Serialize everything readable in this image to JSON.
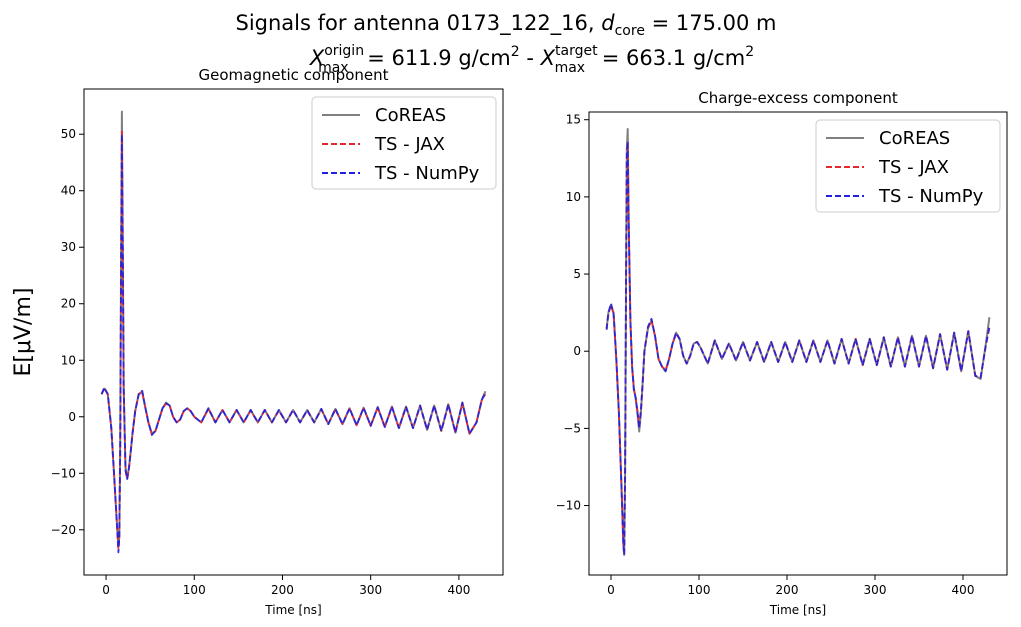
{
  "figure": {
    "title_line1": {
      "prefix": "Signals for antenna 0173_122_16, ",
      "d": "d",
      "d_sub": "core",
      "suffix": " = 175.00 m"
    },
    "title_line2": {
      "x1": "X",
      "x1_sup": "origin",
      "x1_sub": "max",
      "v1": " =  611.9 g/cm",
      "v1_sup": "2",
      "sep": " -  ",
      "x2": "X",
      "x2_sup": "target",
      "x2_sub": "max",
      "v2": " =  663.1 g/cm",
      "v2_sup": "2"
    }
  },
  "chart_data": [
    {
      "type": "line",
      "title": "Geomagnetic component",
      "xlabel": "Time [ns]",
      "ylabel": "E[μV/m]",
      "xlim": [
        -25,
        450
      ],
      "ylim": [
        -28,
        58
      ],
      "xticks": [
        0,
        100,
        200,
        300,
        400
      ],
      "yticks": [
        -20,
        -10,
        0,
        10,
        20,
        30,
        40,
        50
      ],
      "legend_position": "top-right",
      "legend": [
        "CoREAS",
        "TS - JAX",
        "TS - NumPy"
      ],
      "series": [
        {
          "name": "CoREAS",
          "color": "#808080",
          "style": "solid",
          "x": [
            -5,
            -2,
            2,
            6,
            9,
            12,
            14,
            15,
            16,
            17,
            18,
            19,
            20,
            22,
            24,
            26,
            28,
            30,
            33,
            37,
            41,
            44,
            48,
            52,
            56,
            60,
            64,
            68,
            72,
            76,
            80,
            84,
            88,
            92,
            96,
            100,
            108,
            116,
            124,
            132,
            140,
            148,
            156,
            164,
            172,
            180,
            188,
            196,
            204,
            212,
            220,
            228,
            236,
            244,
            252,
            260,
            268,
            276,
            284,
            292,
            300,
            308,
            316,
            324,
            332,
            340,
            348,
            356,
            364,
            372,
            380,
            388,
            396,
            404,
            412,
            420,
            426,
            430
          ],
          "y": [
            4,
            5,
            4,
            -2,
            -10,
            -18,
            -23,
            -21,
            -5,
            25,
            54,
            30,
            5,
            -9,
            -11,
            -9,
            -6,
            -3,
            1,
            4,
            4.5,
            2,
            -1,
            -3,
            -2.5,
            -0.5,
            1.5,
            2.5,
            2,
            0,
            -1,
            -0.5,
            1,
            1.5,
            1,
            0,
            -1,
            1.5,
            -1,
            1.2,
            -1,
            1.2,
            -1,
            1.2,
            -1,
            1.2,
            -1,
            1.2,
            -1,
            1.2,
            -1,
            1.2,
            -1,
            1.4,
            -1.3,
            1.4,
            -1.3,
            1.5,
            -1.5,
            1.6,
            -1.6,
            1.7,
            -1.8,
            1.8,
            -2,
            1.8,
            -2,
            2,
            -2.3,
            2,
            -2.5,
            2.2,
            -2.8,
            2.5,
            -3,
            -1,
            3,
            4.5
          ]
        },
        {
          "name": "TS - JAX",
          "color": "#e8242c",
          "style": "dashed",
          "x": [
            -5,
            -2,
            2,
            6,
            9,
            12,
            14,
            15,
            16,
            17,
            18,
            19,
            20,
            22,
            24,
            26,
            28,
            30,
            33,
            37,
            41,
            44,
            48,
            52,
            56,
            60,
            64,
            68,
            72,
            76,
            80,
            84,
            88,
            92,
            96,
            100,
            108,
            116,
            124,
            132,
            140,
            148,
            156,
            164,
            172,
            180,
            188,
            196,
            204,
            212,
            220,
            228,
            236,
            244,
            252,
            260,
            268,
            276,
            284,
            292,
            300,
            308,
            316,
            324,
            332,
            340,
            348,
            356,
            364,
            372,
            380,
            388,
            396,
            404,
            412,
            420,
            426,
            430
          ],
          "y": [
            4,
            5,
            4,
            -2,
            -10,
            -18,
            -23.5,
            -21.5,
            -6,
            24,
            50.5,
            29,
            5,
            -9.5,
            -11,
            -9,
            -6,
            -3,
            1,
            4,
            4.3,
            2,
            -1,
            -3.2,
            -2.5,
            -0.5,
            1.5,
            2.3,
            2,
            0,
            -1,
            -0.5,
            1,
            1.5,
            1,
            0,
            -1,
            1.4,
            -1,
            1.2,
            -1,
            1.2,
            -1,
            1.1,
            -1,
            1.2,
            -1,
            1.1,
            -1,
            1.2,
            -1,
            1.1,
            -1,
            1.3,
            -1.3,
            1.3,
            -1.3,
            1.4,
            -1.5,
            1.5,
            -1.6,
            1.6,
            -1.8,
            1.7,
            -2,
            1.7,
            -2,
            1.9,
            -2.3,
            1.9,
            -2.5,
            2.1,
            -2.8,
            2.4,
            -3,
            -1,
            3,
            4
          ]
        },
        {
          "name": "TS - NumPy",
          "color": "#2020e0",
          "style": "dashed",
          "x": [
            -5,
            -2,
            2,
            6,
            9,
            12,
            14,
            15,
            16,
            17,
            18,
            19,
            20,
            22,
            24,
            26,
            28,
            30,
            33,
            37,
            41,
            44,
            48,
            52,
            56,
            60,
            64,
            68,
            72,
            76,
            80,
            84,
            88,
            92,
            96,
            100,
            108,
            116,
            124,
            132,
            140,
            148,
            156,
            164,
            172,
            180,
            188,
            196,
            204,
            212,
            220,
            228,
            236,
            244,
            252,
            260,
            268,
            276,
            284,
            292,
            300,
            308,
            316,
            324,
            332,
            340,
            348,
            356,
            364,
            372,
            380,
            388,
            396,
            404,
            412,
            420,
            426,
            430
          ],
          "y": [
            4,
            5.2,
            4,
            -2,
            -10,
            -18,
            -24,
            -21.5,
            -6,
            24,
            50,
            29,
            5,
            -9.5,
            -11,
            -9,
            -6,
            -3,
            1,
            4,
            4.6,
            2,
            -1,
            -3.2,
            -2.5,
            -0.5,
            1.5,
            2.4,
            2,
            0,
            -1,
            -0.5,
            1,
            1.5,
            1,
            0,
            -1,
            1.5,
            -1,
            1.2,
            -1,
            1.2,
            -1,
            1.2,
            -1,
            1.2,
            -1,
            1.2,
            -1,
            1.2,
            -1,
            1.2,
            -1,
            1.4,
            -1.3,
            1.4,
            -1.3,
            1.5,
            -1.5,
            1.6,
            -1.6,
            1.7,
            -1.8,
            1.8,
            -2,
            1.8,
            -2,
            2,
            -2.3,
            2,
            -2.5,
            2.2,
            -2.8,
            2.5,
            -3,
            -1,
            3,
            4.2
          ]
        }
      ]
    },
    {
      "type": "line",
      "title": "Charge-excess component",
      "xlabel": "Time [ns]",
      "ylabel": "",
      "xlim": [
        -25,
        450
      ],
      "ylim": [
        -14.5,
        15.5
      ],
      "xticks": [
        0,
        100,
        200,
        300,
        400
      ],
      "yticks": [
        -10,
        -5,
        0,
        5,
        10,
        15
      ],
      "legend_position": "top-right",
      "legend": [
        "CoREAS",
        "TS - JAX",
        "TS - NumPy"
      ],
      "series": [
        {
          "name": "CoREAS",
          "color": "#808080",
          "style": "solid",
          "x": [
            -5,
            -3,
            0,
            3,
            6,
            9,
            12,
            14,
            15,
            16,
            17,
            18,
            19,
            20,
            22,
            24,
            26,
            28,
            30,
            32,
            34,
            36,
            38,
            42,
            46,
            50,
            54,
            58,
            62,
            66,
            70,
            74,
            78,
            82,
            86,
            90,
            94,
            98,
            102,
            110,
            118,
            126,
            134,
            142,
            150,
            158,
            166,
            174,
            182,
            190,
            198,
            206,
            214,
            222,
            230,
            238,
            246,
            254,
            262,
            270,
            278,
            286,
            294,
            302,
            310,
            318,
            326,
            334,
            342,
            350,
            358,
            366,
            374,
            382,
            390,
            398,
            406,
            414,
            420,
            426,
            430
          ],
          "y": [
            1.5,
            2.5,
            3,
            2.5,
            -0.5,
            -4,
            -9,
            -12.5,
            -13.2,
            -8,
            4,
            13,
            14.4,
            9,
            2,
            -1,
            -2.5,
            -3,
            -4,
            -5.2,
            -4,
            -2,
            0,
            1.5,
            2,
            1,
            -0.5,
            -1,
            -1.3,
            -0.5,
            0.5,
            1.2,
            0.8,
            -0.3,
            -0.8,
            -0.3,
            0.5,
            0.6,
            0.2,
            -0.8,
            0.7,
            -0.5,
            0.5,
            -0.6,
            0.6,
            -0.6,
            0.6,
            -0.7,
            0.6,
            -0.7,
            0.6,
            -0.7,
            0.7,
            -0.7,
            0.7,
            -0.7,
            0.7,
            -0.8,
            0.8,
            -0.8,
            0.8,
            -0.9,
            0.8,
            -0.9,
            0.9,
            -1,
            0.9,
            -1,
            1,
            -1,
            1,
            -1.1,
            1.1,
            -1.2,
            1.2,
            -1.3,
            1.3,
            -1.6,
            -1.8,
            0.5,
            2.2
          ]
        },
        {
          "name": "TS - JAX",
          "color": "#e8242c",
          "style": "dashed",
          "x": [
            -5,
            -3,
            0,
            3,
            6,
            9,
            12,
            14,
            15,
            16,
            17,
            18,
            19,
            20,
            22,
            24,
            26,
            28,
            30,
            32,
            34,
            36,
            38,
            42,
            46,
            50,
            54,
            58,
            62,
            66,
            70,
            74,
            78,
            82,
            86,
            90,
            94,
            98,
            102,
            110,
            118,
            126,
            134,
            142,
            150,
            158,
            166,
            174,
            182,
            190,
            198,
            206,
            214,
            222,
            230,
            238,
            246,
            254,
            262,
            270,
            278,
            286,
            294,
            302,
            310,
            318,
            326,
            334,
            342,
            350,
            358,
            366,
            374,
            382,
            390,
            398,
            406,
            414,
            420,
            426,
            430
          ],
          "y": [
            1.4,
            2.4,
            3,
            2.4,
            -0.5,
            -4,
            -9,
            -12.3,
            -13,
            -8,
            3.8,
            12.6,
            13.5,
            8.5,
            2,
            -1,
            -2.4,
            -3,
            -3.8,
            -4.8,
            -3.8,
            -2,
            0,
            1.5,
            2,
            1,
            -0.5,
            -1,
            -1.2,
            -0.5,
            0.5,
            1.1,
            0.8,
            -0.3,
            -0.8,
            -0.3,
            0.5,
            0.6,
            0.2,
            -0.8,
            0.7,
            -0.5,
            0.5,
            -0.6,
            0.6,
            -0.6,
            0.6,
            -0.7,
            0.6,
            -0.7,
            0.6,
            -0.7,
            0.7,
            -0.7,
            0.7,
            -0.7,
            0.7,
            -0.8,
            0.8,
            -0.8,
            0.8,
            -0.9,
            0.8,
            -0.9,
            0.9,
            -1,
            0.9,
            -1,
            1,
            -1,
            1,
            -1.1,
            1.1,
            -1.2,
            1.2,
            -1.3,
            1.3,
            -1.6,
            -1.7,
            0.4,
            1.5
          ]
        },
        {
          "name": "TS - NumPy",
          "color": "#2020e0",
          "style": "dashed",
          "x": [
            -5,
            -3,
            0,
            3,
            6,
            9,
            12,
            14,
            15,
            16,
            17,
            18,
            19,
            20,
            22,
            24,
            26,
            28,
            30,
            32,
            34,
            36,
            38,
            42,
            46,
            50,
            54,
            58,
            62,
            66,
            70,
            74,
            78,
            82,
            86,
            90,
            94,
            98,
            102,
            110,
            118,
            126,
            134,
            142,
            150,
            158,
            166,
            174,
            182,
            190,
            198,
            206,
            214,
            222,
            230,
            238,
            246,
            254,
            262,
            270,
            278,
            286,
            294,
            302,
            310,
            318,
            326,
            334,
            342,
            350,
            358,
            366,
            374,
            382,
            390,
            398,
            406,
            414,
            420,
            426,
            430
          ],
          "y": [
            1.4,
            2.5,
            3.1,
            2.4,
            -0.5,
            -4,
            -9,
            -12.5,
            -13.2,
            -8,
            3.8,
            12.8,
            13.6,
            8.6,
            2,
            -1,
            -2.5,
            -3,
            -3.9,
            -5,
            -3.9,
            -2,
            0,
            1.6,
            2.1,
            1,
            -0.5,
            -1,
            -1.3,
            -0.5,
            0.5,
            1.2,
            0.8,
            -0.3,
            -0.8,
            -0.3,
            0.5,
            0.6,
            0.2,
            -0.8,
            0.7,
            -0.5,
            0.5,
            -0.6,
            0.6,
            -0.6,
            0.6,
            -0.7,
            0.6,
            -0.7,
            0.6,
            -0.7,
            0.7,
            -0.7,
            0.7,
            -0.7,
            0.7,
            -0.8,
            0.8,
            -0.8,
            0.8,
            -0.9,
            0.8,
            -0.9,
            0.9,
            -1,
            0.9,
            -1,
            1,
            -1,
            1,
            -1.1,
            1.1,
            -1.2,
            1.2,
            -1.3,
            1.3,
            -1.6,
            -1.7,
            0.4,
            1.6
          ]
        }
      ]
    }
  ]
}
